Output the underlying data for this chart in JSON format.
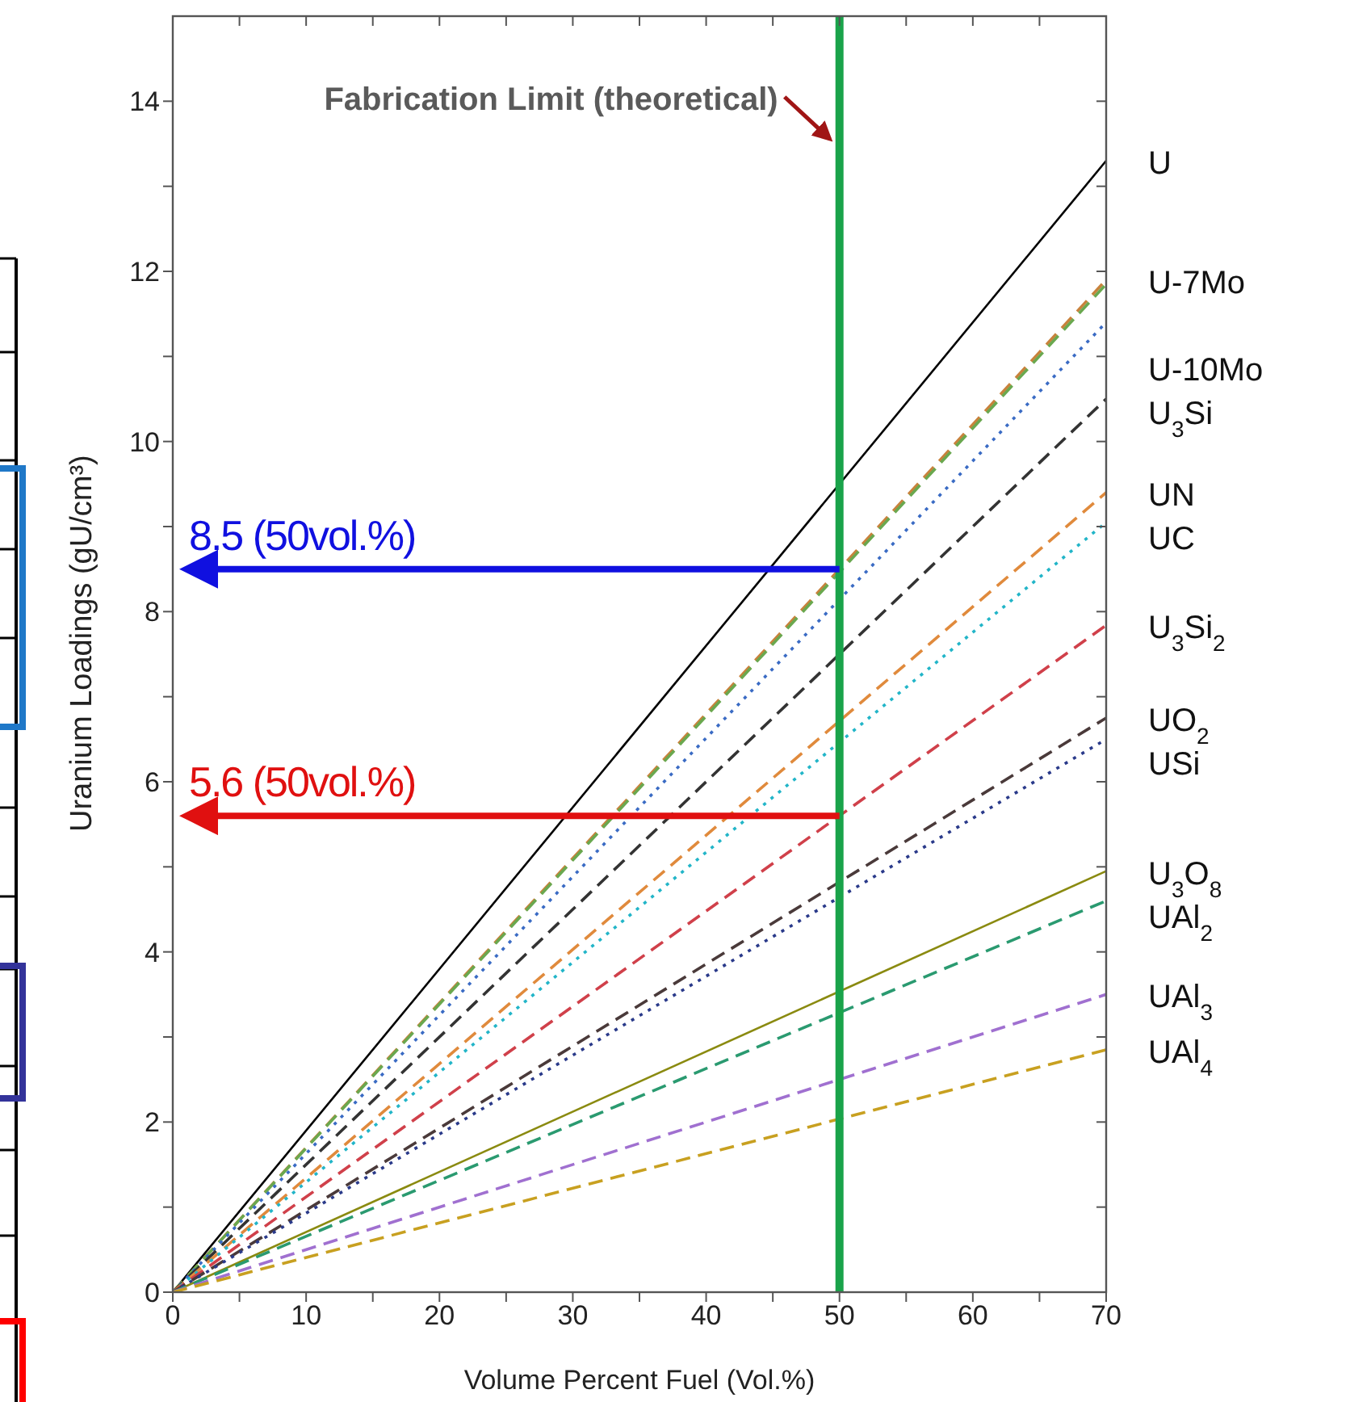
{
  "chart_data": {
    "type": "line",
    "xlabel": "Volume Percent Fuel (Vol.%)",
    "ylabel": "Uranium Loadings (gU/cm³)",
    "xlim": [
      0,
      70
    ],
    "ylim": [
      0,
      15
    ],
    "xticks": [
      0,
      {
        "value": 5,
        "label": null
      },
      10,
      {
        "value": 15,
        "label": null
      },
      20,
      {
        "value": 25,
        "label": null
      },
      30,
      {
        "value": 35,
        "label": null
      },
      40,
      {
        "value": 45,
        "label": null
      },
      50,
      {
        "value": 55,
        "label": null
      },
      60,
      {
        "value": 65,
        "label": null
      },
      70
    ],
    "yticks": [
      0,
      {
        "value": 1,
        "label": null
      },
      2,
      {
        "value": 3,
        "label": null
      },
      4,
      {
        "value": 5,
        "label": null
      },
      6,
      {
        "value": 7,
        "label": null
      },
      8,
      {
        "value": 9,
        "label": null
      },
      10,
      {
        "value": 11,
        "label": null
      },
      12,
      {
        "value": 13,
        "label": null
      },
      14
    ],
    "marker": "none",
    "x": [
      0,
      70
    ],
    "series": [
      {
        "name": "U",
        "color": "#000000",
        "line_style": "solid",
        "values": [
          0,
          13.3
        ]
      },
      {
        "name": "U-7Mo",
        "color": "#c8823c",
        "line_style": "dashed",
        "values": [
          0,
          11.9
        ]
      },
      {
        "color": "#6aa84f",
        "line_style": "dashed",
        "values": [
          0,
          11.85
        ]
      },
      {
        "name": "U-10Mo",
        "color": "#3a6bc4",
        "line_style": "dotted",
        "values": [
          0,
          11.4
        ]
      },
      {
        "name": "U$_{3}$Si",
        "color": "#333333",
        "line_style": "dashed",
        "values": [
          0,
          10.5
        ]
      },
      {
        "name": "UN",
        "color": "#e08a3c",
        "line_style": "dashed",
        "values": [
          0,
          9.4
        ]
      },
      {
        "name": "UC",
        "color": "#22b5c8",
        "line_style": "dotted",
        "values": [
          0,
          9.05
        ]
      },
      {
        "name": "U$_{3}$Si$_{2}$",
        "color": "#d0404a",
        "line_style": "dashed",
        "values": [
          0,
          7.84
        ]
      },
      {
        "name": "UO$_{2}$",
        "color": "#4a3a3a",
        "line_style": "dashed",
        "values": [
          0,
          6.75
        ]
      },
      {
        "name": "USi",
        "color": "#2a3a8a",
        "line_style": "dotted",
        "values": [
          0,
          6.5
        ]
      },
      {
        "name": "U$_{3}$O$_{8}$",
        "color": "#8a8a10",
        "line_style": "solid",
        "values": [
          0,
          4.95
        ]
      },
      {
        "name": "UAl$_{2}$",
        "color": "#2a9a70",
        "line_style": "dashed",
        "values": [
          0,
          4.6
        ]
      },
      {
        "name": "UAl$_{3}$",
        "color": "#a070d0",
        "line_style": "dashed",
        "values": [
          0,
          3.5
        ]
      },
      {
        "name": "UAl$_{4}$",
        "color": "#c8a020",
        "line_style": "dashed",
        "values": [
          0,
          2.85
        ]
      }
    ],
    "ref_lines": [
      {
        "axis": "x",
        "value": 50,
        "label": "Fabrication Limit (theoretical)",
        "color": "#1aa34a"
      },
      {
        "axis": "y",
        "value": 8.5,
        "label": "8.5 (50vol.%)",
        "color": "#1010e0"
      },
      {
        "axis": "y",
        "value": 5.6,
        "label": "5.6 (50vol.%)",
        "color": "#e01010"
      }
    ]
  }
}
